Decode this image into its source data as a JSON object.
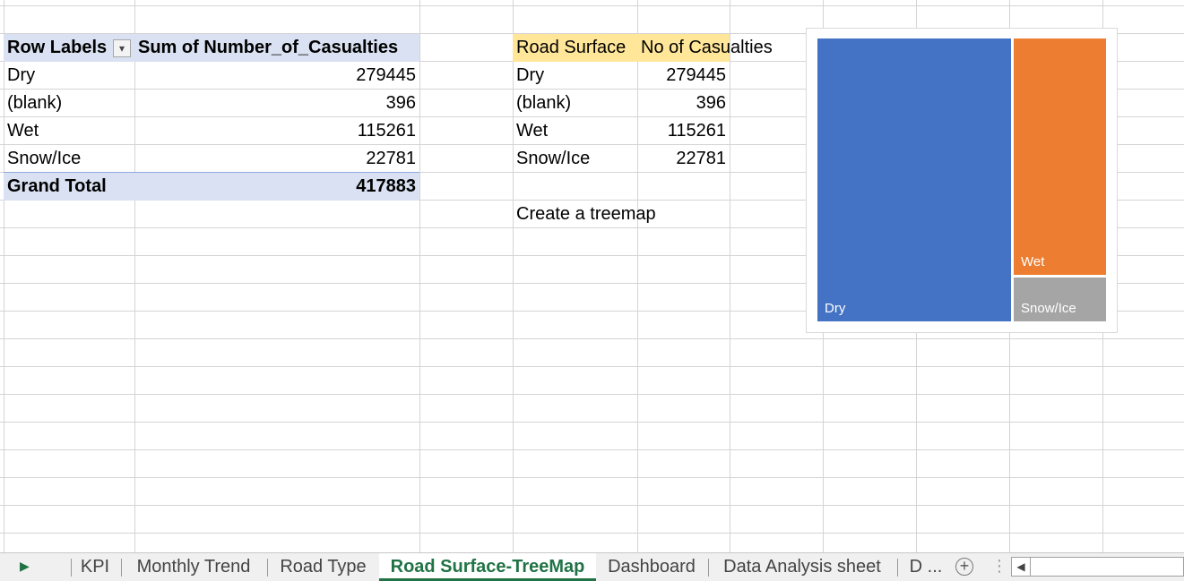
{
  "pivot": {
    "header_row_labels": "Row Labels",
    "header_sum": "Sum of Number_of_Casualties",
    "rows": [
      {
        "label": "Dry",
        "value": "279445"
      },
      {
        "label": "(blank)",
        "value": "396"
      },
      {
        "label": "Wet",
        "value": "115261"
      },
      {
        "label": "Snow/Ice",
        "value": "22781"
      }
    ],
    "grand_total_label": "Grand Total",
    "grand_total_value": "417883"
  },
  "table2": {
    "header_surface": "Road Surface",
    "header_casualties": "No of Casualties",
    "rows": [
      {
        "label": "Dry",
        "value": "279445"
      },
      {
        "label": "(blank)",
        "value": "396"
      },
      {
        "label": "Wet",
        "value": "115261"
      },
      {
        "label": "Snow/Ice",
        "value": "22781"
      }
    ],
    "note": "Create a treemap"
  },
  "chart_data": {
    "type": "treemap",
    "categories": [
      "Dry",
      "Wet",
      "Snow/Ice"
    ],
    "values": [
      279445,
      115261,
      22781
    ],
    "colors": [
      "#4472c4",
      "#ed7d31",
      "#a5a5a5"
    ]
  },
  "tabs": {
    "items": [
      "KPI",
      "Monthly Trend",
      "Road Type",
      "Road Surface-TreeMap",
      "Dashboard",
      "Data Analysis sheet",
      "D ..."
    ],
    "active": "Road Surface-TreeMap"
  },
  "colors": {
    "accent": "#217346",
    "pivot_header": "#d9e1f2",
    "table_header": "#ffe699"
  }
}
